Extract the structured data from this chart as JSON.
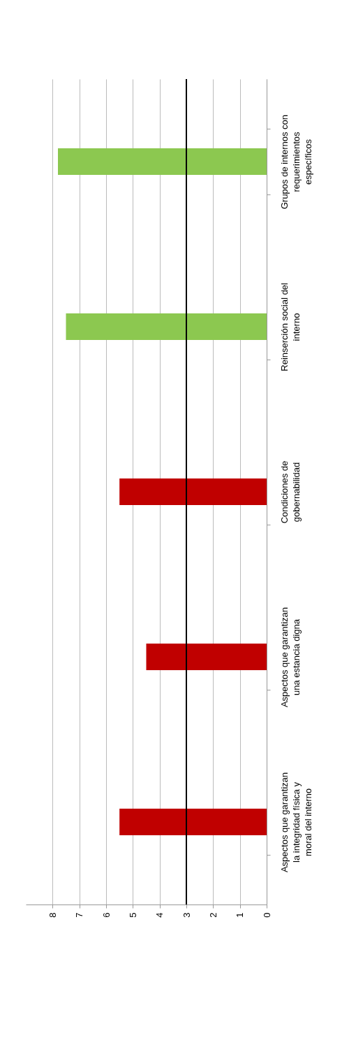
{
  "chart_data": {
    "type": "bar",
    "orientation": "horizontal",
    "categories": [
      "Grupos de internos con requerimientos específicos",
      "Reinserción social del interno",
      "Condiciones de gobernabilidad",
      "Aspectos que garantizan una estancia digna",
      "Aspectos que garantizan la integridad física y moral del interno"
    ],
    "values": [
      7.8,
      7.5,
      5.5,
      4.5,
      5.5
    ],
    "colors": [
      "#8cc850",
      "#8cc850",
      "#c00000",
      "#c00000",
      "#c00000"
    ],
    "xlim": [
      9,
      0
    ],
    "xticks": [
      0,
      1,
      2,
      3,
      4,
      5,
      6,
      7,
      8
    ],
    "grid": "x",
    "ref_lines": [
      {
        "axis": "x",
        "value": 3,
        "color": "#000000"
      }
    ]
  }
}
